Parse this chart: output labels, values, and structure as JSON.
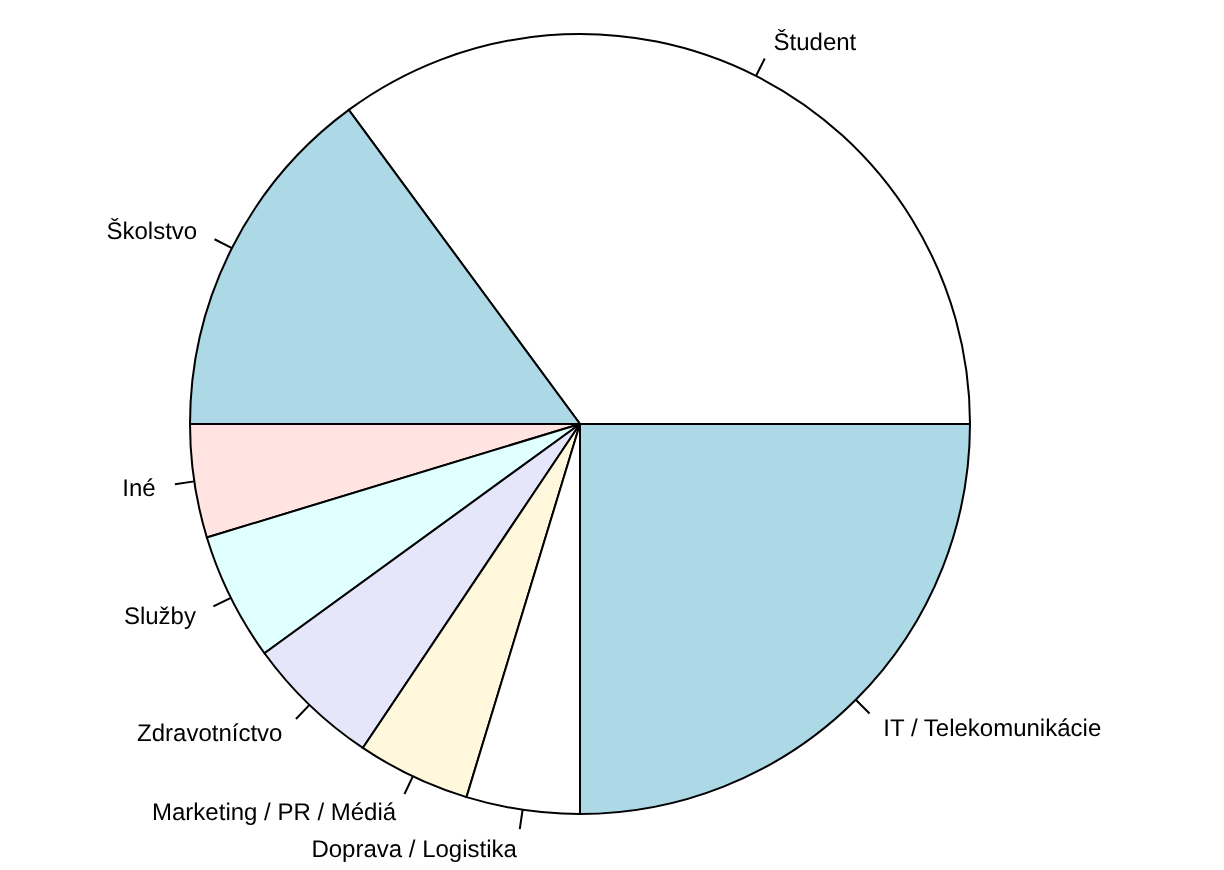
{
  "chart_data": {
    "type": "pie",
    "categories": [
      "Študent",
      "Školstvo",
      "Iné",
      "Služby",
      "Zdravotníctvo",
      "Marketing / PR / Médiá",
      "Doprava / Logistika",
      "IT / Telekomunikácie"
    ],
    "values": [
      35.1,
      14.9,
      4.7,
      5.3,
      5.6,
      4.7,
      4.7,
      25
    ],
    "colors": [
      "#ffffff",
      "#add8e6",
      "#ffe4e1",
      "#e0ffff",
      "#e6e6fa",
      "#fff8dc",
      "#ffffff",
      "#add8e6"
    ]
  }
}
